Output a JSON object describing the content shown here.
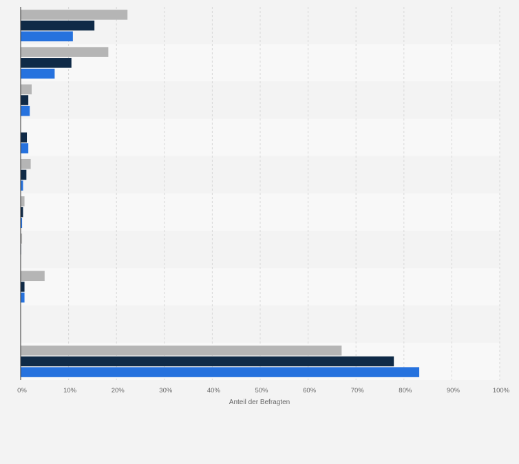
{
  "chart_data": {
    "type": "bar",
    "orientation": "horizontal",
    "xlabel": "Anteil der Befragten",
    "xlim": [
      0,
      100
    ],
    "x_ticks": [
      "0%",
      "10%",
      "20%",
      "30%",
      "40%",
      "50%",
      "60%",
      "70%",
      "80%",
      "90%",
      "100%"
    ],
    "grid": true,
    "categories": [
      "",
      "",
      "",
      "",
      "",
      "",
      "",
      "",
      "",
      ""
    ],
    "series": [
      {
        "color": "#b5b5b5",
        "values": [
          22.3,
          18.3,
          2.3,
          0,
          2.1,
          0.8,
          0.3,
          5.0,
          0,
          67.0
        ]
      },
      {
        "color": "#0f2a47",
        "values": [
          15.4,
          10.6,
          1.6,
          1.3,
          1.2,
          0.5,
          0.1,
          0.8,
          0,
          77.9
        ]
      },
      {
        "color": "#2672de",
        "values": [
          10.9,
          7.1,
          1.9,
          1.6,
          0.5,
          0.3,
          0,
          0.8,
          0,
          83.2
        ]
      }
    ]
  }
}
